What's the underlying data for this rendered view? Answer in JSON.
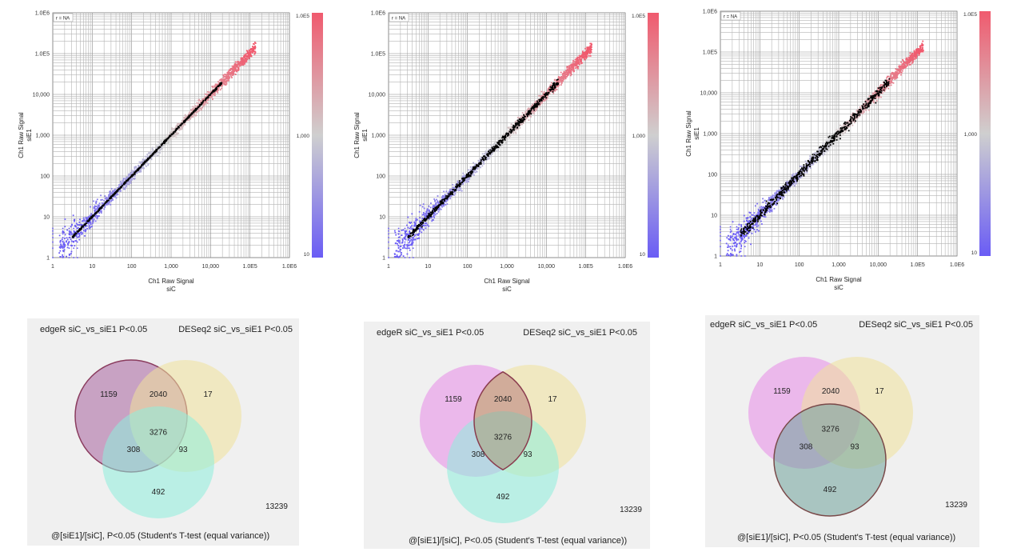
{
  "scatter_common": {
    "x_ticks": [
      "1",
      "10",
      "100",
      "1,000",
      "10,000",
      "1.0E5",
      "1.0E6"
    ],
    "y_ticks": [
      "1",
      "10",
      "100",
      "1,000",
      "10,000",
      "1.0E5",
      "1.0E6"
    ],
    "ylabel_line1": "Ch1 Raw Signal",
    "ylabel_line2": "siE1",
    "xlabel_line1": "Ch1 Raw Signal",
    "xlabel_line2": "siC",
    "corr_label": "r = NA",
    "colorbar_labels": [
      "1.0E5",
      "1,000",
      "10"
    ],
    "colors": {
      "high": "#f05a6e",
      "mid": "#cfcfcf",
      "low": "#6a5cf5",
      "highlight": "#000000"
    }
  },
  "chart_data": [
    {
      "type": "scatter",
      "xlabel": "Ch1 Raw Signal siC",
      "ylabel": "Ch1 Raw Signal siE1",
      "log_scale": true,
      "xlim": [
        1,
        1000000
      ],
      "ylim": [
        1,
        1000000
      ],
      "grid": true,
      "highlight_spread": 0.05
    },
    {
      "type": "scatter",
      "xlabel": "Ch1 Raw Signal siC",
      "ylabel": "Ch1 Raw Signal siE1",
      "log_scale": true,
      "xlim": [
        1,
        1000000
      ],
      "ylim": [
        1,
        1000000
      ],
      "grid": true,
      "highlight_spread": 0.14
    },
    {
      "type": "scatter",
      "xlabel": "Ch1 Raw Signal siC",
      "ylabel": "Ch1 Raw Signal siE1",
      "log_scale": true,
      "xlim": [
        1,
        1000000
      ],
      "ylim": [
        1,
        1000000
      ],
      "grid": true,
      "highlight_spread": 0.25
    }
  ],
  "venn_common": {
    "set_a_label": "edgeR siC_vs_siE1 P<0.05",
    "set_b_label": "DESeq2 siC_vs_siE1 P<0.05",
    "set_c_label": "@[siE1]/[siC], P<0.05 (Student's T-test (equal variance))",
    "only_a": "1159",
    "a_and_b": "2040",
    "only_b": "17",
    "a_b_c": "3276",
    "a_and_c": "308",
    "b_and_c": "93",
    "only_c": "492",
    "outside": "13239",
    "colors": {
      "a": "#e88ae8",
      "b": "#f0e29a",
      "c": "#8eeedc",
      "highlight_a": "#a0609e",
      "highlight_c": "#6fa39a"
    }
  }
}
